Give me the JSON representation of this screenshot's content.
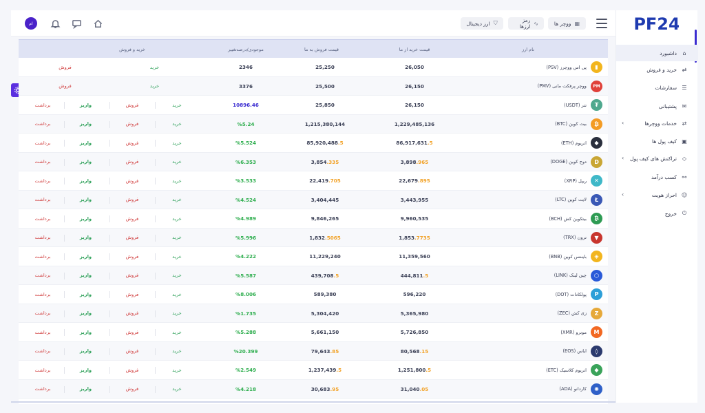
{
  "header": {
    "avatar_text": "ام",
    "buttons": [
      {
        "label": "ووچر ها",
        "icon": "ticket"
      },
      {
        "label": "رمز ارزها",
        "icon": "wave"
      },
      {
        "label": "ارز دیجیتال",
        "icon": "shield"
      }
    ]
  },
  "sidebar": {
    "logo_text": "PF24",
    "items": [
      {
        "label": "داشبورد",
        "icon": "home-icon",
        "glyph": "⌂",
        "chevron": false,
        "active": true
      },
      {
        "label": "خرید و فروش",
        "icon": "exchange-icon",
        "glyph": "⇄",
        "chevron": false,
        "active": false
      },
      {
        "label": "سفارشات",
        "icon": "list-icon",
        "glyph": "☰",
        "chevron": false,
        "active": false
      },
      {
        "label": "پشتیبانی",
        "icon": "chat-icon",
        "glyph": "✉",
        "chevron": false,
        "active": false
      },
      {
        "label": "خدمات ووچرها",
        "icon": "voucher-icon",
        "glyph": "⇄",
        "chevron": true,
        "active": false
      },
      {
        "label": "کیف پول ها",
        "icon": "wallet-icon",
        "glyph": "▣",
        "chevron": false,
        "active": false
      },
      {
        "label": "تراکنش های کیف پول",
        "icon": "tag-icon",
        "glyph": "◇",
        "chevron": true,
        "active": false
      },
      {
        "label": "کسب درآمد",
        "icon": "network-icon",
        "glyph": "⚯",
        "chevron": false,
        "active": false
      },
      {
        "label": "احراز هویت",
        "icon": "user-icon",
        "glyph": "☺",
        "chevron": true,
        "active": false
      },
      {
        "label": "خروج",
        "icon": "logout-icon",
        "glyph": "⏻",
        "chevron": false,
        "active": false
      }
    ]
  },
  "table": {
    "headers": {
      "name": "نام ارز",
      "buy_price": "قیمت خرید از ما",
      "sell_price": "قیمت فروش به ما",
      "stock_change": "موجودی/درصدتغییر",
      "trade": "خرید و فروش"
    },
    "actions": {
      "buy": "خرید",
      "sell": "فروش",
      "deposit": "واریز",
      "withdraw": "برداشت"
    },
    "rows": [
      {
        "name": "پی اس ووچرز (PSV)",
        "color": "#f2b51e",
        "glyph": "▮",
        "buy": "26,050",
        "sell": "25,250",
        "stat": "2346",
        "stat_type": "plain",
        "mode": "voucher"
      },
      {
        "name": "ووچر پرفکت مانی (PMV)",
        "color": "#e0413a",
        "glyph": "PM",
        "buy": "26,150",
        "sell": "25,500",
        "stat": "3376",
        "stat_type": "plain",
        "mode": "voucher"
      },
      {
        "name": "تتر (USDT)",
        "color": "#4fa88e",
        "glyph": "₮",
        "buy": "26,150",
        "sell": "25,850",
        "stat": "10896.46",
        "stat_type": "stock",
        "mode": "full"
      },
      {
        "name": "بیت کوین (BTC)",
        "color": "#f39b24",
        "glyph": "₿",
        "buy": "1,229,485,136",
        "sell": "1,215,380,144",
        "stat": "%5.24",
        "stat_type": "change",
        "mode": "full"
      },
      {
        "name": "اتریوم (ETH)",
        "color": "#2a2f3d",
        "glyph": "◆",
        "buy": "86,917,631",
        "buy_hl": ".5",
        "sell": "85,920,488",
        "sell_hl": ".5",
        "stat": "%5.524",
        "stat_type": "change",
        "mode": "full"
      },
      {
        "name": "دوج کوین (DOGE)",
        "color": "#c9a634",
        "glyph": "D",
        "buy": "3,898",
        "buy_hl": ".965",
        "sell": "3,854",
        "sell_hl": ".335",
        "stat": "%6.353",
        "stat_type": "change",
        "mode": "full"
      },
      {
        "name": "ریپل (XRP)",
        "color": "#3fb8c8",
        "glyph": "✕",
        "buy": "22,679",
        "buy_hl": ".895",
        "sell": "22,419",
        "sell_hl": ".705",
        "stat": "%3.533",
        "stat_type": "change",
        "mode": "full"
      },
      {
        "name": "لایت کوین (LTC)",
        "color": "#3a58b5",
        "glyph": "Ł",
        "buy": "3,443,955",
        "sell": "3,404,445",
        "stat": "%4.524",
        "stat_type": "change",
        "mode": "full"
      },
      {
        "name": "بیتکوین کش (BCH)",
        "color": "#2e9b53",
        "glyph": "₿",
        "buy": "9,960,535",
        "sell": "9,846,265",
        "stat": "%4.989",
        "stat_type": "change",
        "mode": "full"
      },
      {
        "name": "ترون (TRX)",
        "color": "#c8352e",
        "glyph": "▼",
        "buy": "1,853",
        "buy_hl": ".7735",
        "sell": "1,832",
        "sell_hl": ".5065",
        "stat": "%5.996",
        "stat_type": "change",
        "mode": "full"
      },
      {
        "name": "بایننس کوین (BNB)",
        "color": "#f2b51e",
        "glyph": "◈",
        "buy": "11,359,560",
        "sell": "11,229,240",
        "stat": "%4.222",
        "stat_type": "change",
        "mode": "full"
      },
      {
        "name": "چین لینک (LINK)",
        "color": "#2a5ad8",
        "glyph": "⬡",
        "buy": "444,811",
        "buy_hl": ".5",
        "sell": "439,708",
        "sell_hl": ".5",
        "stat": "%5.587",
        "stat_type": "change",
        "mode": "full"
      },
      {
        "name": "پولکادات (DOT)",
        "color": "#2d9fd8",
        "glyph": "P",
        "buy": "596,220",
        "sell": "589,380",
        "stat": "%8.006",
        "stat_type": "change",
        "mode": "full"
      },
      {
        "name": "زی کش (ZEC)",
        "color": "#e6a93a",
        "glyph": "Z",
        "buy": "5,365,980",
        "sell": "5,304,420",
        "stat": "%1.735",
        "stat_type": "change",
        "mode": "full"
      },
      {
        "name": "مونرو (XMR)",
        "color": "#f26822",
        "glyph": "M",
        "buy": "5,726,850",
        "sell": "5,661,150",
        "stat": "%5.288",
        "stat_type": "change",
        "mode": "full"
      },
      {
        "name": "ایاس (EOS)",
        "color": "#2b3a6e",
        "glyph": "◊",
        "buy": "80,568",
        "buy_hl": ".15",
        "sell": "79,643",
        "sell_hl": ".85",
        "stat": "%20.399",
        "stat_type": "change",
        "mode": "full"
      },
      {
        "name": "اتریوم کلاسیک (ETC)",
        "color": "#3aa35a",
        "glyph": "◆",
        "buy": "1,251,800",
        "buy_hl": ".5",
        "sell": "1,237,439",
        "sell_hl": ".5",
        "stat": "%2.549",
        "stat_type": "change",
        "mode": "full"
      },
      {
        "name": "کاردانو (ADA)",
        "color": "#2f60c8",
        "glyph": "✺",
        "buy": "31,040",
        "buy_hl": ".05",
        "sell": "30,683",
        "sell_hl": ".95",
        "stat": "%4.218",
        "stat_type": "change",
        "mode": "full"
      }
    ]
  }
}
